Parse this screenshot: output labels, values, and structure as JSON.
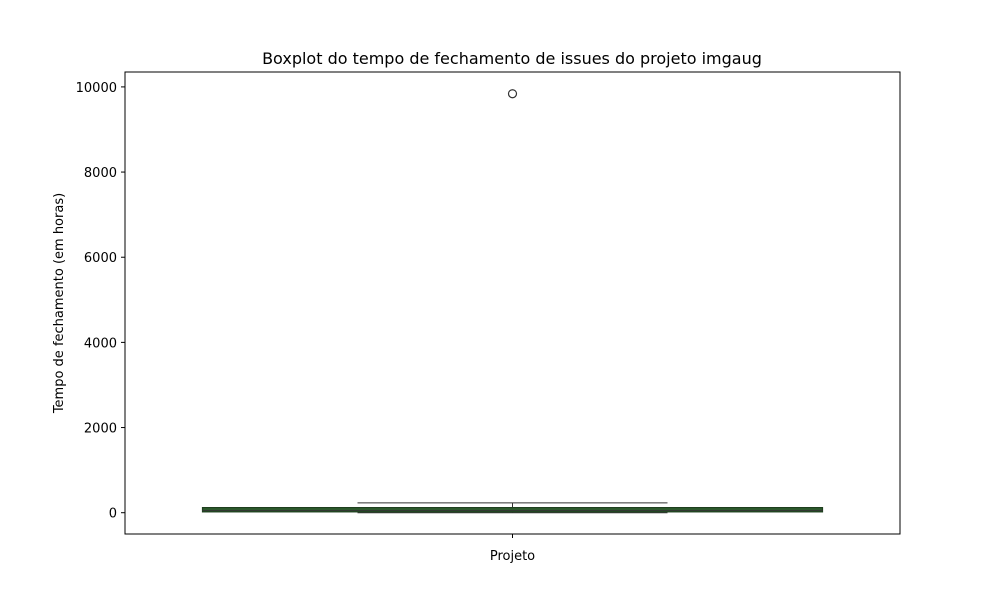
{
  "chart_data": {
    "type": "box",
    "title": "Boxplot do tempo de fechamento de issues do projeto imgaug",
    "xlabel": "",
    "ylabel": "Tempo de fechamento (em horas)",
    "categories": [
      "Projeto"
    ],
    "ylim": [
      -500,
      10350
    ],
    "yticks": [
      0,
      2000,
      4000,
      6000,
      8000,
      10000
    ],
    "ytick_labels": [
      "0",
      "2000",
      "4000",
      "6000",
      "8000",
      "10000"
    ],
    "grid": false,
    "box": {
      "whisker_low": 0,
      "q1": 20,
      "median": 55,
      "q3": 120,
      "whisker_high": 230,
      "outliers": [
        9840
      ]
    },
    "colors": {
      "box_fill": "#2e5e2e",
      "box_edge": "#1f3f1f",
      "line": "#333333"
    }
  }
}
